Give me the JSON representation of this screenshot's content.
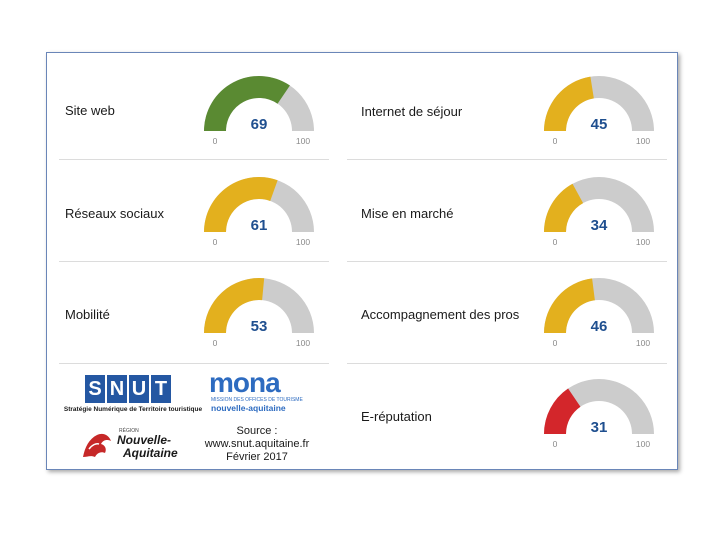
{
  "chart_data": [
    {
      "type": "gauge",
      "title": "Site web",
      "value": 69,
      "min": 0,
      "max": 100,
      "color": "#5a8a32"
    },
    {
      "type": "gauge",
      "title": "Internet de séjour",
      "value": 45,
      "min": 0,
      "max": 100,
      "color": "#e3b01e"
    },
    {
      "type": "gauge",
      "title": "Réseaux sociaux",
      "value": 61,
      "min": 0,
      "max": 100,
      "color": "#e3b01e"
    },
    {
      "type": "gauge",
      "title": "Mise en marché",
      "value": 34,
      "min": 0,
      "max": 100,
      "color": "#e3b01e"
    },
    {
      "type": "gauge",
      "title": "Mobilité",
      "value": 53,
      "min": 0,
      "max": 100,
      "color": "#e3b01e"
    },
    {
      "type": "gauge",
      "title": "Accompagnement des pros",
      "value": 46,
      "min": 0,
      "max": 100,
      "color": "#e3b01e"
    },
    {
      "type": "gauge",
      "title": "E-réputation",
      "value": 31,
      "min": 0,
      "max": 100,
      "color": "#d3262b"
    }
  ],
  "gauge_track_color": "#cccccc",
  "logos": {
    "snut": {
      "letters": [
        "S",
        "N",
        "U",
        "T"
      ],
      "subtitle": "Stratégie Numérique de Territoire touristique"
    },
    "mona": {
      "word": "mona",
      "line1": "MISSION DES OFFICES DE TOURISME",
      "line2": "nouvelle-aquitaine"
    },
    "region": {
      "small": "RÉGION",
      "line1": "Nouvelle-",
      "line2": "Aquitaine"
    }
  },
  "source": {
    "line1": "Source :",
    "line2": "www.snut.aquitaine.fr",
    "line3": "Février 2017"
  }
}
